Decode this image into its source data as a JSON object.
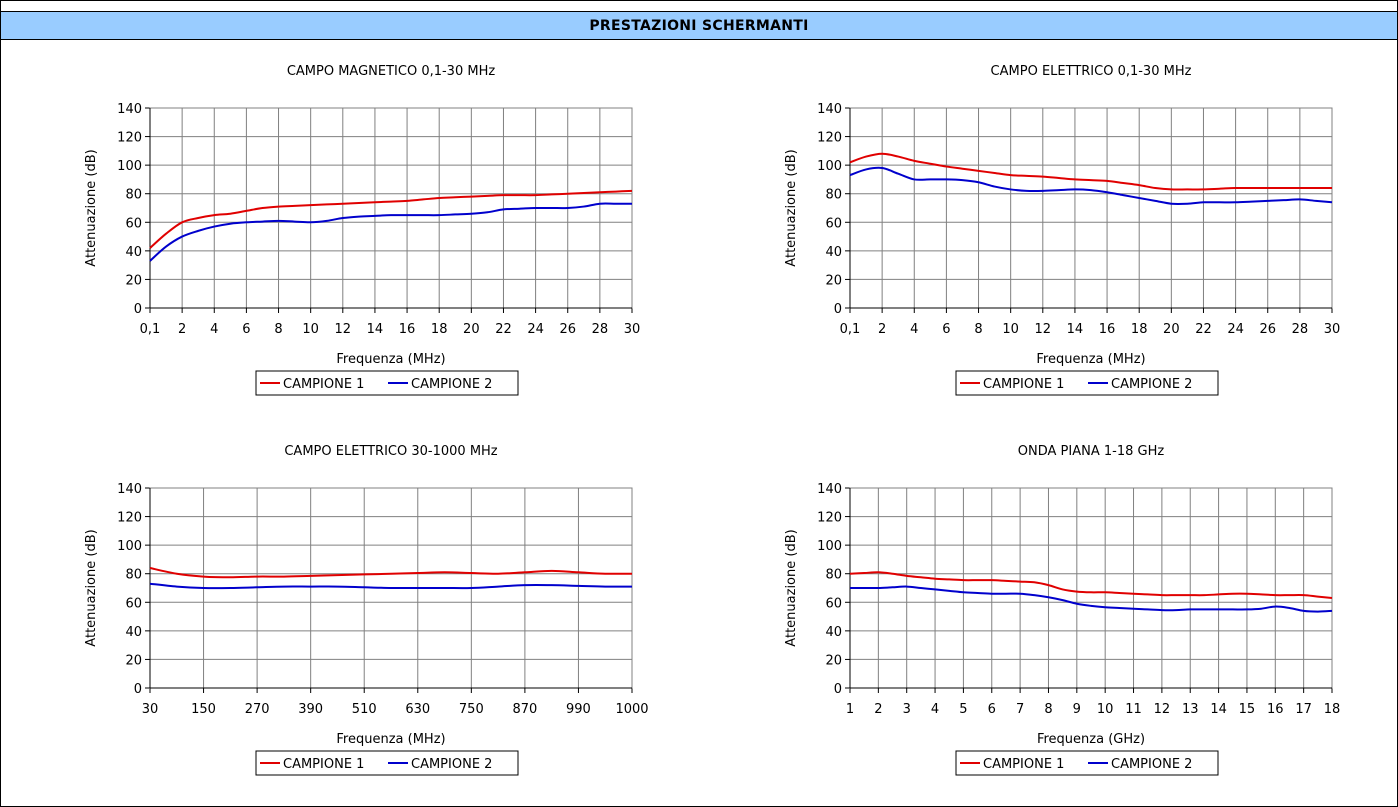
{
  "header": {
    "title": "PRESTAZIONI SCHERMANTI"
  },
  "colors": {
    "series1": "#e00000",
    "series2": "#0000cc",
    "grid": "#808080",
    "header_bg": "#99ccff"
  },
  "chart_data": [
    {
      "type": "line",
      "title": "CAMPO MAGNETICO 0,1-30 MHz",
      "xlabel": "Frequenza (MHz)",
      "ylabel": "Attenuazione (dB)",
      "ylim": [
        0,
        140
      ],
      "yticks": [
        "0",
        "20",
        "40",
        "60",
        "80",
        "100",
        "120",
        "140"
      ],
      "xticks": [
        "0,1",
        "2",
        "4",
        "6",
        "8",
        "10",
        "12",
        "14",
        "16",
        "18",
        "20",
        "22",
        "24",
        "26",
        "28",
        "30"
      ],
      "xlim": [
        0,
        15
      ],
      "grid": true,
      "legend": "bottom",
      "series": [
        {
          "name": "CAMPIONE 1",
          "x": [
            0,
            0.5,
            1,
            1.5,
            2,
            2.5,
            3,
            3.5,
            4,
            4.5,
            5,
            5.5,
            6,
            6.5,
            7,
            7.5,
            8,
            8.5,
            9,
            9.5,
            10,
            10.5,
            11,
            11.5,
            12,
            12.5,
            13,
            13.5,
            14,
            14.5,
            15
          ],
          "values": [
            42,
            52,
            60,
            63,
            65,
            66,
            68,
            70,
            71,
            71.5,
            72,
            72.5,
            73,
            73.5,
            74,
            74.5,
            75,
            76,
            77,
            77.5,
            78,
            78.5,
            79,
            79,
            79,
            79.5,
            80,
            80.5,
            81,
            81.5,
            82
          ]
        },
        {
          "name": "CAMPIONE 2",
          "x": [
            0,
            0.5,
            1,
            1.5,
            2,
            2.5,
            3,
            3.5,
            4,
            4.5,
            5,
            5.5,
            6,
            6.5,
            7,
            7.5,
            8,
            8.5,
            9,
            9.5,
            10,
            10.5,
            11,
            11.5,
            12,
            12.5,
            13,
            13.5,
            14,
            14.5,
            15
          ],
          "values": [
            33,
            43,
            50,
            54,
            57,
            59,
            60,
            60.5,
            61,
            60.5,
            60,
            61,
            63,
            64,
            64.5,
            65,
            65,
            65,
            65,
            65.5,
            66,
            67,
            69,
            69.5,
            70,
            70,
            70,
            71,
            73,
            73,
            73
          ]
        }
      ]
    },
    {
      "type": "line",
      "title": "CAMPO ELETTRICO 0,1-30 MHz",
      "xlabel": "Frequenza (MHz)",
      "ylabel": "Attenuazione (dB)",
      "ylim": [
        0,
        140
      ],
      "yticks": [
        "0",
        "20",
        "40",
        "60",
        "80",
        "100",
        "120",
        "140"
      ],
      "xticks": [
        "0,1",
        "2",
        "4",
        "6",
        "8",
        "10",
        "12",
        "14",
        "16",
        "18",
        "20",
        "22",
        "24",
        "26",
        "28",
        "30"
      ],
      "xlim": [
        0,
        15
      ],
      "grid": true,
      "legend": "bottom",
      "series": [
        {
          "name": "CAMPIONE 1",
          "x": [
            0,
            0.5,
            1,
            1.5,
            2,
            2.5,
            3,
            3.5,
            4,
            4.5,
            5,
            5.5,
            6,
            6.5,
            7,
            7.5,
            8,
            8.5,
            9,
            9.5,
            10,
            10.5,
            11,
            11.5,
            12,
            12.5,
            13,
            13.5,
            14,
            14.5,
            15
          ],
          "values": [
            102,
            106,
            108,
            106,
            103,
            101,
            99,
            97.5,
            96,
            94.5,
            93,
            92.5,
            92,
            91,
            90,
            89.5,
            89,
            87.5,
            86,
            84,
            83,
            83,
            83,
            83.5,
            84,
            84,
            84,
            84,
            84,
            84,
            84
          ]
        },
        {
          "name": "CAMPIONE 2",
          "x": [
            0,
            0.5,
            1,
            1.5,
            2,
            2.5,
            3,
            3.5,
            4,
            4.5,
            5,
            5.5,
            6,
            6.5,
            7,
            7.5,
            8,
            8.5,
            9,
            9.5,
            10,
            10.5,
            11,
            11.5,
            12,
            12.5,
            13,
            13.5,
            14,
            14.5,
            15
          ],
          "values": [
            93,
            97,
            98,
            94,
            90,
            90,
            90,
            89.5,
            88,
            85,
            83,
            82,
            82,
            82.5,
            83,
            82.5,
            81,
            79,
            77,
            75,
            73,
            73,
            74,
            74,
            74,
            74.5,
            75,
            75.5,
            76,
            75,
            74
          ]
        }
      ]
    },
    {
      "type": "line",
      "title": "CAMPO ELETTRICO 30-1000 MHz",
      "xlabel": "Frequenza (MHz)",
      "ylabel": "Attenuazione (dB)",
      "ylim": [
        0,
        140
      ],
      "yticks": [
        "0",
        "20",
        "40",
        "60",
        "80",
        "100",
        "120",
        "140"
      ],
      "xticks": [
        "30",
        "150",
        "270",
        "390",
        "510",
        "630",
        "750",
        "870",
        "990",
        "1000"
      ],
      "xlim": [
        0,
        9
      ],
      "grid": true,
      "legend": "bottom",
      "series": [
        {
          "name": "CAMPIONE 1",
          "x": [
            0,
            0.5,
            1,
            1.5,
            2,
            2.5,
            3,
            3.5,
            4,
            4.5,
            5,
            5.5,
            6,
            6.5,
            7,
            7.5,
            8,
            8.5,
            9
          ],
          "values": [
            84,
            80,
            78,
            77.5,
            78,
            78,
            78.5,
            79,
            79.5,
            80,
            80.5,
            81,
            80.5,
            80,
            81,
            82,
            81,
            80,
            80
          ]
        },
        {
          "name": "CAMPIONE 2",
          "x": [
            0,
            0.5,
            1,
            1.5,
            2,
            2.5,
            3,
            3.5,
            4,
            4.5,
            5,
            5.5,
            6,
            6.5,
            7,
            7.5,
            8,
            8.5,
            9
          ],
          "values": [
            73,
            71,
            70,
            70,
            70.5,
            71,
            71,
            71,
            70.5,
            70,
            70,
            70,
            70,
            71,
            72,
            72,
            71.5,
            71,
            71
          ]
        }
      ]
    },
    {
      "type": "line",
      "title": "ONDA PIANA 1-18 GHz",
      "xlabel": "Frequenza (GHz)",
      "ylabel": "Attenuazione (dB)",
      "ylim": [
        0,
        140
      ],
      "yticks": [
        "0",
        "20",
        "40",
        "60",
        "80",
        "100",
        "120",
        "140"
      ],
      "xticks": [
        "1",
        "2",
        "3",
        "4",
        "5",
        "6",
        "7",
        "8",
        "9",
        "10",
        "11",
        "12",
        "13",
        "14",
        "15",
        "16",
        "17",
        "18"
      ],
      "xlim": [
        1,
        18
      ],
      "grid": true,
      "legend": "bottom",
      "series": [
        {
          "name": "CAMPIONE 1",
          "x": [
            1,
            1.5,
            2,
            2.5,
            3,
            3.5,
            4,
            4.5,
            5,
            5.5,
            6,
            6.5,
            7,
            7.5,
            8,
            8.5,
            9,
            9.5,
            10,
            10.5,
            11,
            11.5,
            12,
            12.5,
            13,
            13.5,
            14,
            14.5,
            15,
            15.5,
            16,
            16.5,
            17,
            17.5,
            18
          ],
          "values": [
            80,
            80.5,
            81,
            80,
            78.5,
            77.5,
            76.5,
            76,
            75.5,
            75.5,
            75.5,
            75,
            74.5,
            74,
            72,
            69,
            67.5,
            67,
            67,
            66.5,
            66,
            65.5,
            65,
            65,
            65,
            65,
            65.5,
            66,
            66,
            65.5,
            65,
            65,
            65,
            64,
            63
          ]
        },
        {
          "name": "CAMPIONE 2",
          "x": [
            1,
            1.5,
            2,
            2.5,
            3,
            3.5,
            4,
            4.5,
            5,
            5.5,
            6,
            6.5,
            7,
            7.5,
            8,
            8.5,
            9,
            9.5,
            10,
            10.5,
            11,
            11.5,
            12,
            12.5,
            13,
            13.5,
            14,
            14.5,
            15,
            15.5,
            16,
            16.5,
            17,
            17.5,
            18
          ],
          "values": [
            70,
            70,
            70,
            70.5,
            71,
            70,
            69,
            68,
            67,
            66.5,
            66,
            66,
            66,
            65,
            63.5,
            61.5,
            59,
            57.5,
            56.5,
            56,
            55.5,
            55,
            54.5,
            54.5,
            55,
            55,
            55,
            55,
            55,
            55.5,
            57,
            56,
            54,
            53.5,
            54
          ]
        }
      ]
    }
  ]
}
